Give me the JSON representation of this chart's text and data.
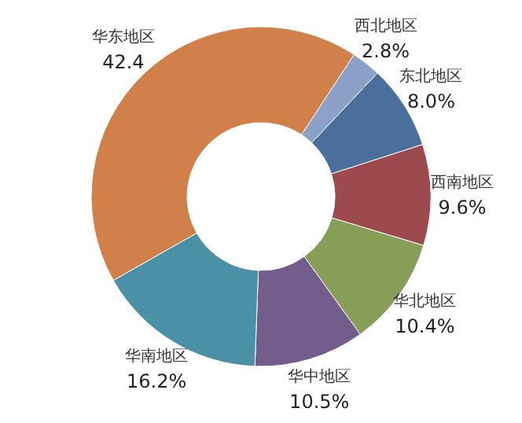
{
  "chart_data": {
    "type": "donut",
    "categories": [
      "西北地区",
      "东北地区",
      "西南地区",
      "华北地区",
      "华中地区",
      "华南地区",
      "华东地区"
    ],
    "values": [
      2.8,
      8.0,
      9.6,
      10.4,
      10.5,
      16.2,
      42.4
    ],
    "value_labels": [
      "2.8%",
      "8.0%",
      "9.6%",
      "10.4%",
      "10.5%",
      "16.2%",
      "42.4"
    ],
    "colors": [
      "#8ca0c8",
      "#4a6f9c",
      "#9c4a4e",
      "#879e58",
      "#725d8c",
      "#4a91a6",
      "#d2804a"
    ]
  }
}
